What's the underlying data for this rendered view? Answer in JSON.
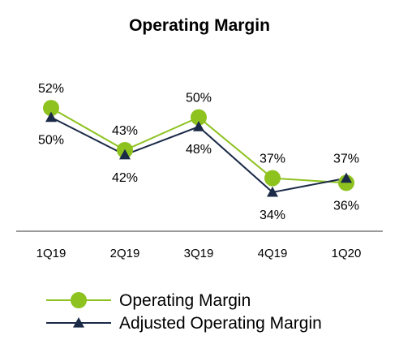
{
  "chart_data": {
    "type": "line",
    "title": "Operating Margin",
    "xlabel": "",
    "ylabel": "",
    "categories": [
      "1Q19",
      "2Q19",
      "3Q19",
      "4Q19",
      "1Q20"
    ],
    "ylim": [
      30,
      56
    ],
    "grid": false,
    "legend_position": "bottom",
    "series": [
      {
        "name": "Operating Margin",
        "values": [
          52,
          43,
          50,
          37,
          36
        ],
        "labels": [
          "52%",
          "43%",
          "50%",
          "37%",
          "36%"
        ],
        "color": "#8DC21F",
        "marker": "circle"
      },
      {
        "name": "Adjusted Operating Margin",
        "values": [
          50,
          42,
          48,
          34,
          37
        ],
        "labels": [
          "50%",
          "42%",
          "48%",
          "34%",
          "37%"
        ],
        "color": "#1B2A47",
        "marker": "triangle"
      }
    ]
  }
}
